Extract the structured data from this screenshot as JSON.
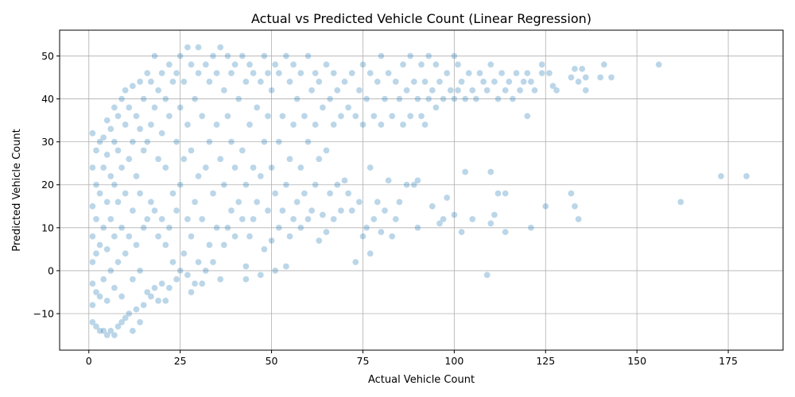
{
  "chart_data": {
    "type": "scatter",
    "title": "Actual vs Predicted Vehicle Count (Linear Regression)",
    "xlabel": "Actual Vehicle Count",
    "ylabel": "Predicted Vehicle Count",
    "xlim": [
      -8,
      190
    ],
    "ylim": [
      -18.5,
      56
    ],
    "xticks": [
      0,
      25,
      50,
      75,
      100,
      125,
      150,
      175
    ],
    "yticks": [
      -10,
      0,
      10,
      20,
      30,
      40,
      50
    ],
    "grid": true,
    "marker_color": "#1f77b4",
    "marker_alpha": 0.3,
    "points": [
      [
        1,
        -12
      ],
      [
        1,
        -8
      ],
      [
        1,
        -3
      ],
      [
        1,
        2
      ],
      [
        1,
        8
      ],
      [
        1,
        15
      ],
      [
        1,
        24
      ],
      [
        1,
        32
      ],
      [
        2,
        -13
      ],
      [
        2,
        -5
      ],
      [
        2,
        4
      ],
      [
        2,
        12
      ],
      [
        2,
        20
      ],
      [
        2,
        28
      ],
      [
        3,
        -14
      ],
      [
        3,
        -6
      ],
      [
        3,
        6
      ],
      [
        3,
        18
      ],
      [
        3,
        30
      ],
      [
        4,
        -14
      ],
      [
        4,
        -2
      ],
      [
        4,
        10
      ],
      [
        4,
        24
      ],
      [
        4,
        31
      ],
      [
        5,
        -15
      ],
      [
        5,
        -7
      ],
      [
        5,
        5
      ],
      [
        5,
        16
      ],
      [
        5,
        27
      ],
      [
        5,
        35
      ],
      [
        6,
        -14
      ],
      [
        6,
        0
      ],
      [
        6,
        12
      ],
      [
        6,
        22
      ],
      [
        6,
        33
      ],
      [
        7,
        -15
      ],
      [
        7,
        -4
      ],
      [
        7,
        8
      ],
      [
        7,
        20
      ],
      [
        7,
        30
      ],
      [
        7,
        38
      ],
      [
        8,
        -13
      ],
      [
        8,
        2
      ],
      [
        8,
        16
      ],
      [
        8,
        28
      ],
      [
        8,
        36
      ],
      [
        9,
        -12
      ],
      [
        9,
        -6
      ],
      [
        9,
        10
      ],
      [
        9,
        24
      ],
      [
        9,
        40
      ],
      [
        10,
        -11
      ],
      [
        10,
        4
      ],
      [
        10,
        18
      ],
      [
        10,
        34
      ],
      [
        10,
        42
      ],
      [
        11,
        -10
      ],
      [
        11,
        8
      ],
      [
        11,
        26
      ],
      [
        11,
        38
      ],
      [
        12,
        -14
      ],
      [
        12,
        -2
      ],
      [
        12,
        14
      ],
      [
        12,
        30
      ],
      [
        12,
        43
      ],
      [
        13,
        -9
      ],
      [
        13,
        6
      ],
      [
        13,
        22
      ],
      [
        13,
        36
      ],
      [
        14,
        -12
      ],
      [
        14,
        0
      ],
      [
        14,
        18
      ],
      [
        14,
        33
      ],
      [
        14,
        44
      ],
      [
        15,
        -8
      ],
      [
        15,
        10
      ],
      [
        15,
        28
      ],
      [
        15,
        40
      ],
      [
        16,
        -5
      ],
      [
        16,
        12
      ],
      [
        16,
        30
      ],
      [
        16,
        46
      ],
      [
        17,
        -6
      ],
      [
        17,
        16
      ],
      [
        17,
        34
      ],
      [
        17,
        44
      ],
      [
        18,
        -4
      ],
      [
        18,
        14
      ],
      [
        18,
        38
      ],
      [
        18,
        50
      ],
      [
        19,
        -7
      ],
      [
        19,
        8
      ],
      [
        19,
        26
      ],
      [
        19,
        42
      ],
      [
        20,
        -3
      ],
      [
        20,
        12
      ],
      [
        20,
        32
      ],
      [
        20,
        46
      ],
      [
        21,
        -7
      ],
      [
        21,
        6
      ],
      [
        21,
        24
      ],
      [
        21,
        40
      ],
      [
        22,
        -4
      ],
      [
        22,
        10
      ],
      [
        22,
        36
      ],
      [
        22,
        48
      ],
      [
        23,
        2
      ],
      [
        23,
        18
      ],
      [
        23,
        44
      ],
      [
        24,
        -2
      ],
      [
        24,
        14
      ],
      [
        24,
        30
      ],
      [
        24,
        46
      ],
      [
        25,
        0
      ],
      [
        25,
        20
      ],
      [
        25,
        38
      ],
      [
        25,
        50
      ],
      [
        26,
        4
      ],
      [
        26,
        26
      ],
      [
        26,
        44
      ],
      [
        27,
        -1
      ],
      [
        27,
        12
      ],
      [
        27,
        34
      ],
      [
        27,
        52
      ],
      [
        28,
        -5
      ],
      [
        28,
        8
      ],
      [
        28,
        28
      ],
      [
        28,
        48
      ],
      [
        29,
        -3
      ],
      [
        29,
        16
      ],
      [
        29,
        40
      ],
      [
        30,
        2
      ],
      [
        30,
        22
      ],
      [
        30,
        46
      ],
      [
        30,
        52
      ],
      [
        31,
        -3
      ],
      [
        31,
        12
      ],
      [
        31,
        36
      ],
      [
        32,
        0
      ],
      [
        32,
        24
      ],
      [
        32,
        48
      ],
      [
        33,
        6
      ],
      [
        33,
        30
      ],
      [
        33,
        44
      ],
      [
        34,
        2
      ],
      [
        34,
        18
      ],
      [
        34,
        50
      ],
      [
        35,
        10
      ],
      [
        35,
        34
      ],
      [
        35,
        46
      ],
      [
        36,
        -2
      ],
      [
        36,
        26
      ],
      [
        36,
        52
      ],
      [
        37,
        6
      ],
      [
        37,
        20
      ],
      [
        37,
        42
      ],
      [
        38,
        10
      ],
      [
        38,
        36
      ],
      [
        38,
        50
      ],
      [
        39,
        14
      ],
      [
        39,
        30
      ],
      [
        39,
        46
      ],
      [
        40,
        8
      ],
      [
        40,
        24
      ],
      [
        40,
        48
      ],
      [
        41,
        16
      ],
      [
        41,
        40
      ],
      [
        42,
        12
      ],
      [
        42,
        28
      ],
      [
        42,
        50
      ],
      [
        43,
        -2
      ],
      [
        43,
        1
      ],
      [
        43,
        20
      ],
      [
        43,
        44
      ],
      [
        44,
        8
      ],
      [
        44,
        34
      ],
      [
        44,
        48
      ],
      [
        45,
        12
      ],
      [
        45,
        24
      ],
      [
        45,
        46
      ],
      [
        46,
        16
      ],
      [
        46,
        38
      ],
      [
        47,
        -1
      ],
      [
        47,
        22
      ],
      [
        47,
        44
      ],
      [
        48,
        5
      ],
      [
        48,
        30
      ],
      [
        48,
        50
      ],
      [
        49,
        14
      ],
      [
        49,
        36
      ],
      [
        49,
        46
      ],
      [
        50,
        7
      ],
      [
        50,
        24
      ],
      [
        50,
        42
      ],
      [
        51,
        0
      ],
      [
        51,
        18
      ],
      [
        51,
        48
      ],
      [
        52,
        10
      ],
      [
        52,
        30
      ],
      [
        52,
        46
      ],
      [
        53,
        14
      ],
      [
        53,
        36
      ],
      [
        54,
        1
      ],
      [
        54,
        20
      ],
      [
        54,
        50
      ],
      [
        55,
        8
      ],
      [
        55,
        26
      ],
      [
        55,
        44
      ],
      [
        56,
        12
      ],
      [
        56,
        34
      ],
      [
        56,
        48
      ],
      [
        57,
        16
      ],
      [
        57,
        40
      ],
      [
        58,
        10
      ],
      [
        58,
        24
      ],
      [
        58,
        46
      ],
      [
        59,
        18
      ],
      [
        59,
        36
      ],
      [
        60,
        12
      ],
      [
        60,
        30
      ],
      [
        60,
        50
      ],
      [
        61,
        14
      ],
      [
        61,
        42
      ],
      [
        62,
        20
      ],
      [
        62,
        34
      ],
      [
        62,
        46
      ],
      [
        63,
        7
      ],
      [
        63,
        26
      ],
      [
        63,
        44
      ],
      [
        64,
        13
      ],
      [
        64,
        38
      ],
      [
        65,
        9
      ],
      [
        65,
        28
      ],
      [
        65,
        48
      ],
      [
        66,
        18
      ],
      [
        66,
        40
      ],
      [
        67,
        12
      ],
      [
        67,
        34
      ],
      [
        67,
        46
      ],
      [
        68,
        20
      ],
      [
        68,
        42
      ],
      [
        69,
        14
      ],
      [
        69,
        36
      ],
      [
        70,
        21
      ],
      [
        70,
        44
      ],
      [
        71,
        18
      ],
      [
        71,
        38
      ],
      [
        72,
        14
      ],
      [
        72,
        46
      ],
      [
        73,
        2
      ],
      [
        73,
        36
      ],
      [
        74,
        16
      ],
      [
        74,
        42
      ],
      [
        75,
        8
      ],
      [
        75,
        34
      ],
      [
        75,
        48
      ],
      [
        76,
        10
      ],
      [
        76,
        40
      ],
      [
        77,
        4
      ],
      [
        77,
        24
      ],
      [
        77,
        46
      ],
      [
        78,
        12
      ],
      [
        78,
        36
      ],
      [
        79,
        16
      ],
      [
        79,
        44
      ],
      [
        80,
        9
      ],
      [
        80,
        34
      ],
      [
        80,
        50
      ],
      [
        81,
        14
      ],
      [
        81,
        40
      ],
      [
        82,
        21
      ],
      [
        82,
        46
      ],
      [
        83,
        8
      ],
      [
        83,
        36
      ],
      [
        84,
        12
      ],
      [
        84,
        44
      ],
      [
        85,
        16
      ],
      [
        85,
        40
      ],
      [
        86,
        34
      ],
      [
        86,
        48
      ],
      [
        87,
        20
      ],
      [
        87,
        42
      ],
      [
        88,
        36
      ],
      [
        88,
        50
      ],
      [
        89,
        20
      ],
      [
        89,
        44
      ],
      [
        90,
        10
      ],
      [
        90,
        21
      ],
      [
        90,
        40
      ],
      [
        91,
        36
      ],
      [
        91,
        48
      ],
      [
        92,
        34
      ],
      [
        92,
        44
      ],
      [
        93,
        40
      ],
      [
        93,
        50
      ],
      [
        94,
        15
      ],
      [
        94,
        42
      ],
      [
        95,
        38
      ],
      [
        95,
        48
      ],
      [
        96,
        11
      ],
      [
        96,
        44
      ],
      [
        97,
        12
      ],
      [
        97,
        40
      ],
      [
        98,
        17
      ],
      [
        98,
        46
      ],
      [
        99,
        42
      ],
      [
        100,
        13
      ],
      [
        100,
        40
      ],
      [
        100,
        50
      ],
      [
        101,
        42
      ],
      [
        101,
        48
      ],
      [
        102,
        9
      ],
      [
        102,
        44
      ],
      [
        103,
        23
      ],
      [
        103,
        40
      ],
      [
        104,
        46
      ],
      [
        105,
        12
      ],
      [
        105,
        42
      ],
      [
        106,
        40
      ],
      [
        107,
        46
      ],
      [
        108,
        44
      ],
      [
        109,
        -1
      ],
      [
        109,
        42
      ],
      [
        110,
        11
      ],
      [
        110,
        23
      ],
      [
        110,
        48
      ],
      [
        111,
        13
      ],
      [
        111,
        44
      ],
      [
        112,
        18
      ],
      [
        112,
        40
      ],
      [
        113,
        46
      ],
      [
        114,
        9
      ],
      [
        114,
        18
      ],
      [
        114,
        42
      ],
      [
        115,
        44
      ],
      [
        116,
        40
      ],
      [
        117,
        46
      ],
      [
        118,
        42
      ],
      [
        119,
        44
      ],
      [
        120,
        36
      ],
      [
        120,
        46
      ],
      [
        121,
        10
      ],
      [
        121,
        44
      ],
      [
        122,
        42
      ],
      [
        124,
        46
      ],
      [
        124,
        48
      ],
      [
        125,
        15
      ],
      [
        126,
        46
      ],
      [
        127,
        43
      ],
      [
        128,
        42
      ],
      [
        132,
        18
      ],
      [
        132,
        45
      ],
      [
        133,
        15
      ],
      [
        133,
        47
      ],
      [
        134,
        12
      ],
      [
        134,
        44
      ],
      [
        135,
        47
      ],
      [
        136,
        42
      ],
      [
        136,
        45
      ],
      [
        140,
        45
      ],
      [
        141,
        48
      ],
      [
        143,
        45
      ],
      [
        156,
        48
      ],
      [
        162,
        16
      ],
      [
        173,
        22
      ],
      [
        180,
        22
      ]
    ]
  }
}
